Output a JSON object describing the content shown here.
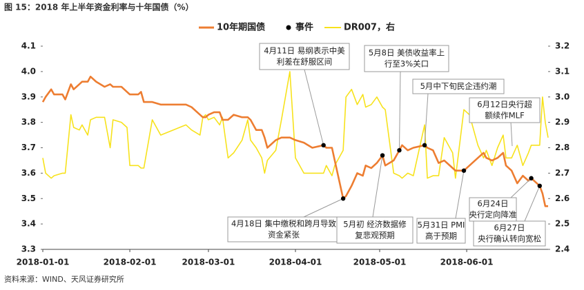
{
  "chart_data": {
    "type": "line",
    "title": "图 15：2018 年上半年资金利率与十年国债（%）",
    "source": "资料来源：WIND、天风证券研究所",
    "x": [
      "2018-01-01",
      "2018-01-02",
      "2018-01-04",
      "2018-01-05",
      "2018-01-08",
      "2018-01-09",
      "2018-01-11",
      "2018-01-12",
      "2018-01-14",
      "2018-01-15",
      "2018-01-17",
      "2018-01-18",
      "2018-01-20",
      "2018-01-23",
      "2018-01-25",
      "2018-01-26",
      "2018-01-29",
      "2018-01-31",
      "2018-02-01",
      "2018-02-04",
      "2018-02-05",
      "2018-02-06",
      "2018-02-09",
      "2018-02-12",
      "2018-02-21",
      "2018-02-23",
      "2018-02-26",
      "2018-02-27",
      "2018-02-28",
      "2018-03-01",
      "2018-03-03",
      "2018-03-05",
      "2018-03-06",
      "2018-03-08",
      "2018-03-10",
      "2018-03-13",
      "2018-03-15",
      "2018-03-16",
      "2018-03-18",
      "2018-03-20",
      "2018-03-21",
      "2018-03-22",
      "2018-03-25",
      "2018-03-27",
      "2018-03-30",
      "2018-04-01",
      "2018-04-04",
      "2018-04-07",
      "2018-04-11",
      "2018-04-12",
      "2018-04-14",
      "2018-04-15",
      "2018-04-18",
      "2018-04-19",
      "2018-04-21",
      "2018-04-23",
      "2018-04-25",
      "2018-04-26",
      "2018-04-28",
      "2018-04-30",
      "2018-05-02",
      "2018-05-03",
      "2018-05-06",
      "2018-05-08",
      "2018-05-09",
      "2018-05-11",
      "2018-05-13",
      "2018-05-17",
      "2018-05-18",
      "2018-05-20",
      "2018-05-22",
      "2018-05-24",
      "2018-05-27",
      "2018-05-28",
      "2018-05-31",
      "2018-06-02",
      "2018-06-05",
      "2018-06-07",
      "2018-06-08",
      "2018-06-10",
      "2018-06-12",
      "2018-06-14",
      "2018-06-15",
      "2018-06-17",
      "2018-06-19",
      "2018-06-21",
      "2018-06-23",
      "2018-06-24",
      "2018-06-27",
      "2018-06-28",
      "2018-06-29",
      "2018-06-30"
    ],
    "series": [
      {
        "name": "10年期国债",
        "color": "#ed7d31",
        "axis": "y",
        "values": [
          3.88,
          3.9,
          3.93,
          3.91,
          3.91,
          3.89,
          3.95,
          3.93,
          3.95,
          3.96,
          3.96,
          3.98,
          3.96,
          3.94,
          3.95,
          3.94,
          3.94,
          3.92,
          3.91,
          3.91,
          3.92,
          3.88,
          3.88,
          3.87,
          3.87,
          3.86,
          3.83,
          3.82,
          3.82,
          3.83,
          3.84,
          3.84,
          3.81,
          3.81,
          3.83,
          3.82,
          3.82,
          3.81,
          3.77,
          3.77,
          3.74,
          3.7,
          3.73,
          3.74,
          3.74,
          3.73,
          3.72,
          3.7,
          3.71,
          3.7,
          3.7,
          3.65,
          3.5,
          3.51,
          3.55,
          3.6,
          3.59,
          3.63,
          3.62,
          3.64,
          3.67,
          3.63,
          3.65,
          3.69,
          3.71,
          3.69,
          3.7,
          3.71,
          3.7,
          3.69,
          3.64,
          3.65,
          3.62,
          3.61,
          3.61,
          3.63,
          3.66,
          3.68,
          3.66,
          3.65,
          3.66,
          3.68,
          3.63,
          3.61,
          3.56,
          3.59,
          3.57,
          3.58,
          3.55,
          3.52,
          3.47,
          3.47
        ]
      },
      {
        "name": "DR007，右",
        "color": "#f7e21b",
        "axis": "y2",
        "values": [
          2.76,
          2.7,
          2.68,
          2.69,
          2.7,
          2.7,
          2.93,
          2.88,
          2.87,
          2.89,
          2.85,
          2.91,
          2.92,
          2.92,
          2.8,
          2.91,
          2.9,
          2.88,
          2.73,
          2.73,
          2.72,
          2.72,
          2.91,
          2.85,
          2.89,
          2.87,
          2.85,
          2.92,
          2.93,
          2.91,
          2.92,
          2.89,
          2.92,
          2.76,
          2.78,
          2.83,
          2.91,
          2.83,
          2.8,
          2.76,
          2.7,
          2.75,
          2.79,
          2.91,
          3.1,
          2.76,
          2.7,
          2.7,
          2.7,
          2.73,
          2.69,
          2.73,
          2.79,
          3.0,
          3.03,
          2.97,
          3.01,
          2.96,
          2.97,
          3.0,
          2.96,
          2.95,
          2.7,
          2.69,
          2.68,
          2.7,
          2.69,
          2.89,
          2.68,
          2.69,
          2.69,
          2.84,
          2.78,
          2.68,
          2.95,
          2.93,
          2.81,
          2.76,
          2.79,
          2.73,
          2.8,
          2.85,
          2.76,
          2.76,
          2.81,
          2.73,
          2.78,
          2.81,
          2.81,
          3.0,
          2.9,
          2.84
        ]
      }
    ],
    "events": {
      "name": "事件",
      "color": "#000000",
      "points": [
        {
          "date": "2018-04-11",
          "value": 3.71,
          "label": [
            "4月11日 易纲表示中美",
            "利差在舒服区间"
          ]
        },
        {
          "date": "2018-04-18",
          "value": 3.5,
          "label": [
            "4月18日 集中缴税和跨月导致",
            "资金紧张"
          ]
        },
        {
          "date": "2018-05-02",
          "value": 3.67,
          "label": [
            "5月初 经济数据修",
            "复悲观预期"
          ]
        },
        {
          "date": "2018-05-08",
          "value": 3.69,
          "label": [
            "5月8日 美债收益率上",
            "行至3%关口"
          ]
        },
        {
          "date": "2018-05-17",
          "value": 3.71,
          "label": [
            "5月中下旬民企违约潮"
          ]
        },
        {
          "date": "2018-05-31",
          "value": 3.61,
          "label": [
            "5月31日 PMI",
            "高于预期"
          ]
        },
        {
          "date": "2018-06-24",
          "value": 3.58,
          "label": [
            "6月24日",
            "央行定向降准"
          ]
        },
        {
          "date": "2018-06-27",
          "value": 3.55,
          "label": [
            "6月27日",
            "央行确认转向宽松"
          ]
        }
      ]
    },
    "annotations": [
      {
        "label": [
          "6月12日央行超",
          "额续作MLF"
        ]
      }
    ],
    "xlim": [
      "2018-01-01",
      "2018-06-30"
    ],
    "xticks": [
      "2018-01-01",
      "2018-02-01",
      "2018-03-01",
      "2018-04-01",
      "2018-05-01",
      "2018-06-01"
    ],
    "ylim": [
      3.3,
      4.1
    ],
    "yticks": [
      3.3,
      3.4,
      3.5,
      3.6,
      3.7,
      3.8,
      3.9,
      {
        "value": 4,
        "label": "4.0"
      },
      4.1
    ],
    "y2lim": [
      2.4,
      3.2
    ],
    "y2ticks": [
      2.4,
      2.5,
      2.6,
      2.7,
      2.8,
      2.9,
      {
        "value": 3,
        "label": "3.0"
      },
      3.1,
      3.2
    ],
    "legend": "top"
  }
}
